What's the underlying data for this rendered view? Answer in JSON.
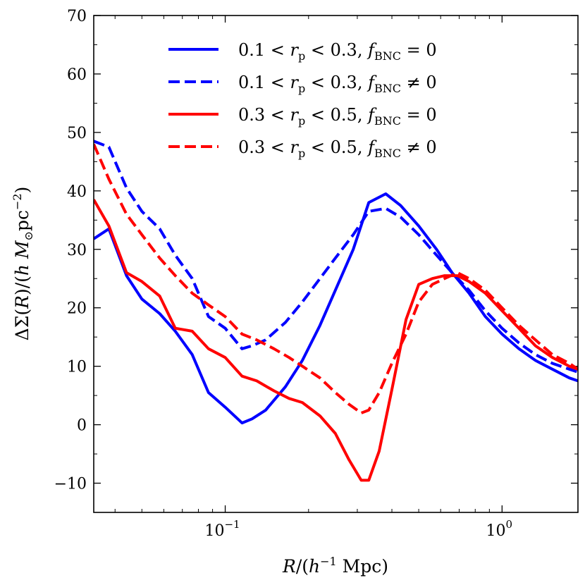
{
  "chart_data": {
    "type": "line",
    "title": "",
    "xlabel": "R/(h⁻¹ Mpc)",
    "ylabel": "ΔΣ(R)/(h M⊙pc⁻²)",
    "xscale": "log",
    "xlim": [
      0.0335,
      1.88
    ],
    "ylim": [
      -15,
      70
    ],
    "yticks": [
      -10,
      0,
      10,
      20,
      30,
      40,
      50,
      60,
      70
    ],
    "ytick_labels": [
      "−10",
      "0",
      "10",
      "20",
      "30",
      "40",
      "50",
      "60",
      "70"
    ],
    "xticks": [
      0.1,
      1.0
    ],
    "xtick_labels": [
      {
        "base": "10",
        "exp": "−1"
      },
      {
        "base": "10",
        "exp": "0"
      }
    ],
    "legend_position": "top-right",
    "series": [
      {
        "name": "0.1 < r_p < 0.3, f_BNC = 0",
        "legend": {
          "lo": "0.1 < ",
          "mid": " < 0.3, ",
          "rel": " = 0"
        },
        "color": "#0000ff",
        "style": "solid",
        "x": [
          0.0335,
          0.038,
          0.044,
          0.05,
          0.058,
          0.066,
          0.076,
          0.087,
          0.1,
          0.115,
          0.125,
          0.14,
          0.165,
          0.19,
          0.22,
          0.25,
          0.29,
          0.33,
          0.38,
          0.43,
          0.5,
          0.58,
          0.66,
          0.76,
          0.87,
          1.0,
          1.15,
          1.32,
          1.52,
          1.75,
          1.88
        ],
        "y": [
          31.8,
          33.5,
          25.5,
          21.5,
          19.0,
          16.0,
          12.0,
          5.5,
          3.0,
          0.3,
          1.0,
          2.5,
          6.5,
          11.0,
          17.0,
          23.0,
          30.0,
          38.0,
          39.5,
          37.5,
          34.0,
          30.0,
          26.0,
          22.5,
          18.5,
          15.5,
          13.0,
          11.0,
          9.5,
          8.0,
          7.5
        ]
      },
      {
        "name": "0.1 < r_p < 0.3, f_BNC ≠ 0",
        "legend": {
          "lo": "0.1 < ",
          "mid": " < 0.3, ",
          "rel": " ≠ 0"
        },
        "color": "#0000ff",
        "style": "dashed",
        "x": [
          0.0335,
          0.038,
          0.044,
          0.05,
          0.058,
          0.066,
          0.076,
          0.087,
          0.1,
          0.115,
          0.125,
          0.14,
          0.165,
          0.19,
          0.22,
          0.25,
          0.29,
          0.33,
          0.38,
          0.43,
          0.5,
          0.58,
          0.66,
          0.76,
          0.87,
          1.0,
          1.15,
          1.32,
          1.52,
          1.75,
          1.88
        ],
        "y": [
          48.5,
          47.5,
          40.5,
          36.5,
          33.5,
          29.0,
          25.0,
          18.5,
          16.5,
          13.0,
          13.5,
          14.5,
          17.5,
          21.0,
          25.0,
          28.5,
          32.5,
          36.5,
          37.0,
          35.5,
          32.5,
          29.0,
          26.0,
          23.0,
          19.5,
          16.5,
          14.0,
          12.0,
          10.5,
          9.5,
          9.0
        ]
      },
      {
        "name": "0.3 < r_p < 0.5, f_BNC = 0",
        "legend": {
          "lo": "0.3 < ",
          "mid": " < 0.5, ",
          "rel": " = 0"
        },
        "color": "#ff0000",
        "style": "solid",
        "x": [
          0.0335,
          0.038,
          0.044,
          0.05,
          0.058,
          0.066,
          0.076,
          0.087,
          0.1,
          0.115,
          0.13,
          0.15,
          0.17,
          0.19,
          0.22,
          0.25,
          0.28,
          0.31,
          0.33,
          0.36,
          0.4,
          0.45,
          0.5,
          0.56,
          0.62,
          0.69,
          0.76,
          0.87,
          1.0,
          1.15,
          1.32,
          1.52,
          1.75,
          1.88
        ],
        "y": [
          38.5,
          34.0,
          26.0,
          24.5,
          22.0,
          16.5,
          16.0,
          13.0,
          11.5,
          8.3,
          7.5,
          5.8,
          4.5,
          3.8,
          1.5,
          -1.5,
          -6.0,
          -9.5,
          -9.5,
          -4.5,
          6.0,
          18.0,
          24.0,
          25.0,
          25.5,
          25.5,
          24.5,
          22.5,
          19.5,
          16.5,
          13.5,
          11.5,
          10.0,
          9.5
        ]
      },
      {
        "name": "0.3 < r_p < 0.5, f_BNC ≠ 0",
        "legend": {
          "lo": "0.3 < ",
          "mid": " < 0.5, ",
          "rel": " ≠ 0"
        },
        "color": "#ff0000",
        "style": "dashed",
        "x": [
          0.0335,
          0.038,
          0.044,
          0.05,
          0.058,
          0.066,
          0.076,
          0.087,
          0.1,
          0.115,
          0.13,
          0.15,
          0.17,
          0.19,
          0.22,
          0.25,
          0.28,
          0.31,
          0.33,
          0.36,
          0.4,
          0.45,
          0.5,
          0.56,
          0.62,
          0.69,
          0.76,
          0.87,
          1.0,
          1.15,
          1.32,
          1.52,
          1.75,
          1.88
        ],
        "y": [
          48.0,
          42.0,
          36.0,
          32.5,
          28.5,
          25.5,
          22.5,
          20.5,
          18.5,
          15.5,
          14.5,
          13.0,
          11.5,
          10.0,
          8.0,
          5.5,
          3.5,
          2.0,
          2.5,
          5.5,
          10.5,
          15.5,
          21.0,
          24.0,
          25.0,
          26.0,
          25.0,
          23.0,
          20.0,
          17.0,
          14.5,
          12.0,
          10.5,
          9.5
        ]
      }
    ]
  }
}
